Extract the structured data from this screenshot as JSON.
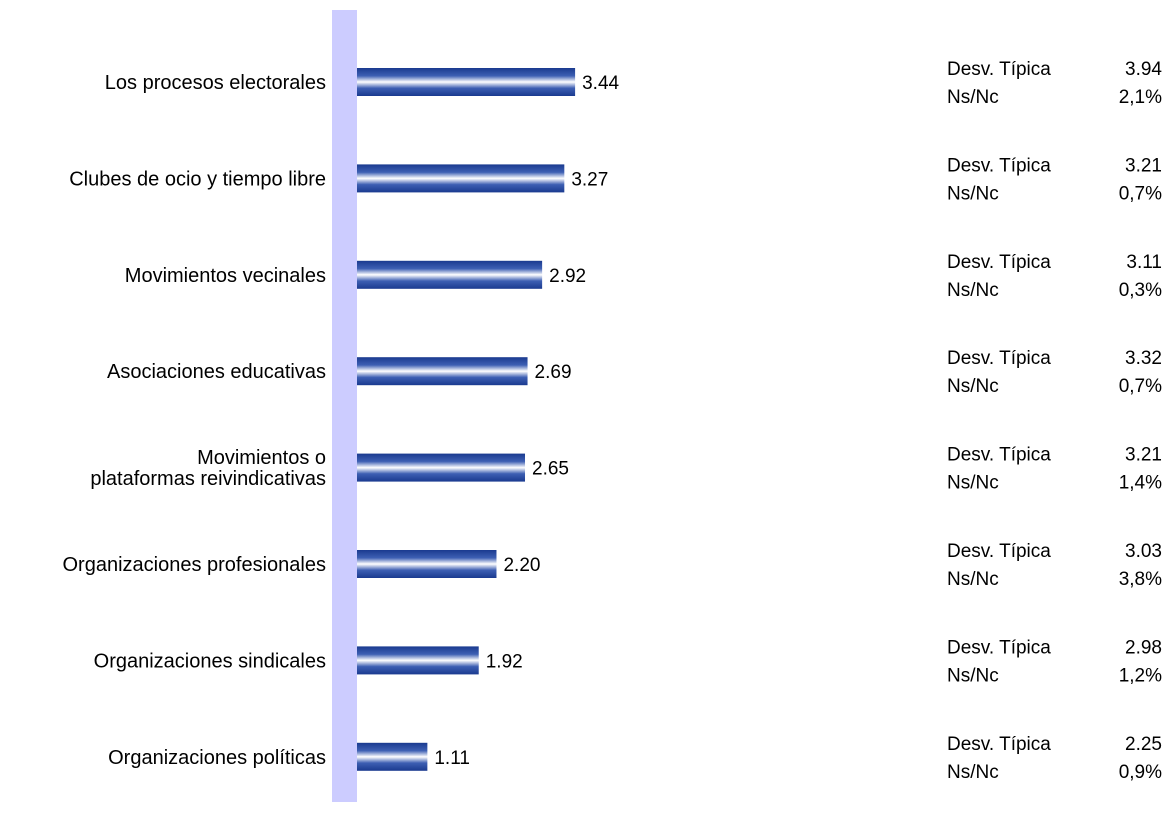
{
  "chart_data": {
    "type": "bar",
    "orientation": "horizontal",
    "categories": [
      [
        "Los procesos electorales"
      ],
      [
        "Clubes de ocio y tiempo libre"
      ],
      [
        "Movimientos vecinales"
      ],
      [
        "Asociaciones educativas"
      ],
      [
        "Movimientos o",
        "plataformas reivindicativas"
      ],
      [
        "Organizaciones profesionales"
      ],
      [
        "Organizaciones sindicales"
      ],
      [
        "Organizaciones políticas"
      ]
    ],
    "values": [
      3.44,
      3.27,
      2.92,
      2.69,
      2.65,
      2.2,
      1.92,
      1.11
    ],
    "value_labels": [
      "3.44",
      "3.27",
      "2.92",
      "2.69",
      "2.65",
      "2.20",
      "1.92",
      "1.11"
    ],
    "stats_labels": {
      "std": "Desv. Típica",
      "nsnc": "Ns/Nc"
    },
    "std_dev": [
      "3.94",
      "3.21",
      "3.11",
      "3.32",
      "3.21",
      "3.03",
      "2.98",
      "2.25"
    ],
    "nsnc": [
      "2,1%",
      "0,7%",
      "0,3%",
      "0,7%",
      "1,4%",
      "3,8%",
      "1,2%",
      "0,9%"
    ],
    "xlim": [
      0,
      10
    ],
    "grid": false,
    "colors": {
      "axis_band": "#ccccff",
      "bar_dark": "#1a3a8f",
      "bar_light": "#ffffff",
      "text": "#000000"
    }
  }
}
